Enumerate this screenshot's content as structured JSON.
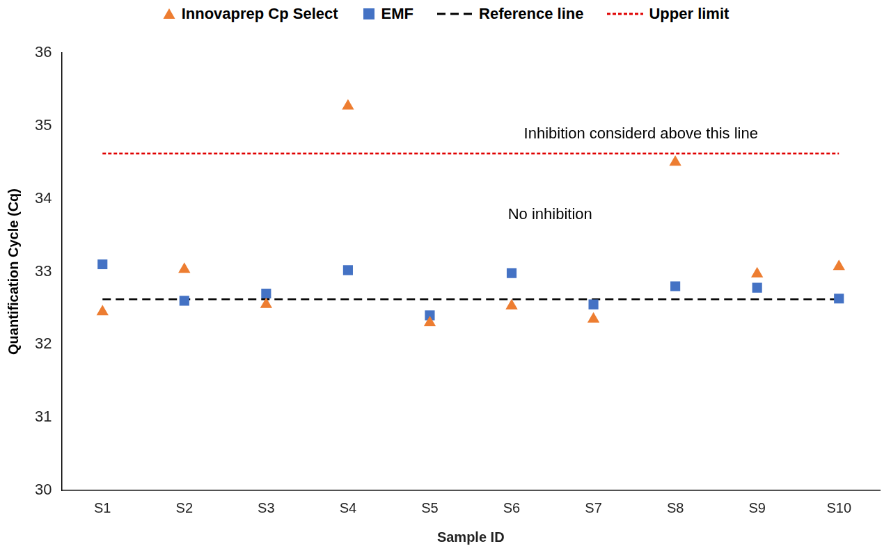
{
  "chart_data": {
    "type": "scatter",
    "categories": [
      "S1",
      "S2",
      "S3",
      "S4",
      "S5",
      "S6",
      "S7",
      "S8",
      "S9",
      "S10"
    ],
    "series": [
      {
        "name": "Innovaprep Cp Select",
        "color": "#ED7D31",
        "marker": "triangle",
        "values": [
          32.45,
          33.03,
          32.55,
          35.27,
          32.3,
          32.53,
          32.35,
          34.5,
          32.97,
          33.07
        ]
      },
      {
        "name": "EMF",
        "color": "#4472C4",
        "marker": "square",
        "values": [
          33.1,
          32.6,
          32.7,
          33.02,
          32.4,
          32.98,
          32.55,
          32.8,
          32.78,
          32.63
        ]
      },
      {
        "name": "Reference line",
        "type": "line",
        "color": "#000000",
        "line_style": "dashed",
        "values": [
          32.62,
          32.62,
          32.62,
          32.62,
          32.62,
          32.62,
          32.62,
          32.62,
          32.62,
          32.62
        ]
      },
      {
        "name": "Upper limit",
        "type": "line",
        "color": "#E00000",
        "line_style": "dotted",
        "values": [
          34.62,
          34.62,
          34.62,
          34.62,
          34.62,
          34.62,
          34.62,
          34.62,
          34.62,
          34.62
        ]
      }
    ],
    "x_label": "Sample ID",
    "y_label": "Quantification Cycle (Cq)",
    "ylim": [
      30,
      36
    ],
    "yticks": [
      30,
      31,
      32,
      33,
      34,
      35,
      36
    ],
    "grid": false,
    "legend": "top",
    "annotations": [
      {
        "text": "Inhibition considerd above this line"
      },
      {
        "text": "No inhibition"
      }
    ]
  }
}
